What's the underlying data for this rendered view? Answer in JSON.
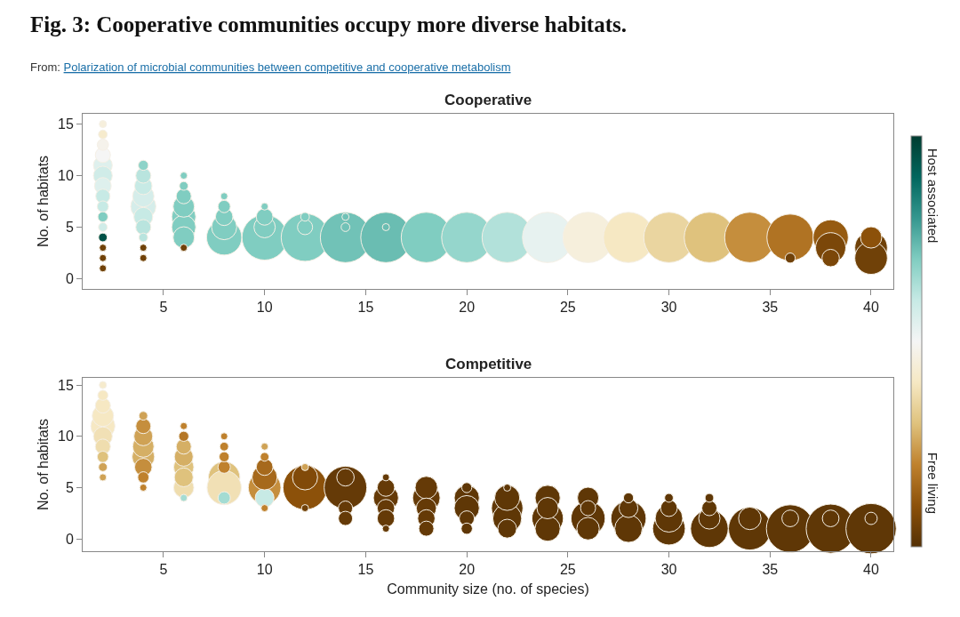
{
  "chart_data": [
    {
      "type": "bubble",
      "title": "Cooperative",
      "ylabel": "No. of habitats",
      "annotations": [
        "Fig. 3: Cooperative communities occupy more diverse habitats.",
        "From:",
        "Polarization of microbial communities between competitive and cooperative metabolism"
      ],
      "x": [
        2,
        2,
        2,
        2,
        2,
        2,
        2,
        2,
        2,
        2,
        2,
        2,
        2,
        2,
        2,
        4,
        4,
        4,
        4,
        4,
        4,
        4,
        4,
        4,
        4,
        6,
        6,
        6,
        6,
        6,
        6,
        6,
        6,
        8,
        8,
        8,
        8,
        8,
        10,
        10,
        10,
        10,
        12,
        12,
        12,
        14,
        14,
        14,
        16,
        16,
        18,
        20,
        22,
        24,
        26,
        28,
        30,
        32,
        34,
        36,
        36,
        38,
        38,
        38,
        40,
        40,
        40
      ],
      "values": [
        11,
        10,
        9,
        12,
        8,
        13,
        7,
        6,
        14,
        5,
        4,
        3,
        2,
        1,
        15,
        7,
        8,
        6,
        9,
        10,
        5,
        11,
        4,
        3,
        2,
        6,
        5,
        7,
        4,
        8,
        9,
        3,
        10,
        4,
        5,
        6,
        7,
        8,
        4,
        5,
        6,
        7,
        4,
        5,
        6,
        4,
        5,
        6,
        4,
        5,
        4,
        4,
        4,
        4,
        4,
        4,
        4,
        4,
        4,
        4,
        2,
        4,
        3,
        2,
        3,
        2,
        4
      ],
      "sizes": [
        0.14,
        0.14,
        0.11,
        0.09,
        0.08,
        0.05,
        0.05,
        0.04,
        0.03,
        0.03,
        0.03,
        0.02,
        0.02,
        0.02,
        0.02,
        0.25,
        0.18,
        0.14,
        0.12,
        0.09,
        0.09,
        0.04,
        0.03,
        0.02,
        0.02,
        0.23,
        0.23,
        0.18,
        0.18,
        0.09,
        0.03,
        0.02,
        0.02,
        0.49,
        0.25,
        0.12,
        0.06,
        0.02,
        0.81,
        0.18,
        0.11,
        0.02,
        0.9,
        0.09,
        0.03,
        1,
        0.03,
        0.02,
        1,
        0.02,
        1,
        1,
        1,
        1,
        1,
        1,
        1,
        1,
        1,
        0.86,
        0.04,
        0.49,
        0.36,
        0.12,
        0.42,
        0.42,
        0.18
      ],
      "cvalues": [
        0.55,
        0.58,
        0.55,
        0.5,
        0.6,
        0.48,
        0.6,
        0.7,
        0.42,
        0.58,
        0.95,
        0.05,
        0.05,
        0.05,
        0.45,
        0.57,
        0.57,
        0.6,
        0.6,
        0.62,
        0.62,
        0.68,
        0.62,
        0.05,
        0.05,
        0.7,
        0.7,
        0.7,
        0.7,
        0.7,
        0.7,
        0.05,
        0.7,
        0.7,
        0.7,
        0.7,
        0.7,
        0.7,
        0.7,
        0.7,
        0.7,
        0.7,
        0.7,
        0.7,
        0.7,
        0.72,
        0.72,
        0.72,
        0.73,
        0.73,
        0.7,
        0.67,
        0.63,
        0.53,
        0.45,
        0.4,
        0.35,
        0.3,
        0.22,
        0.17,
        0.05,
        0.12,
        0.07,
        0.07,
        0.05,
        0.05,
        0.1
      ],
      "xlim": [
        1,
        41.1
      ],
      "xticks": [
        5,
        10,
        15,
        20,
        25,
        30,
        35,
        40
      ],
      "ylim": [
        -1,
        16
      ],
      "yticks": [
        0,
        5,
        10,
        15
      ],
      "clim": [
        0,
        1
      ],
      "cticks": [
        {
          "value": 0.85,
          "label": "Host associated"
        },
        {
          "value": 0.15,
          "label": "Free living"
        }
      ]
    },
    {
      "type": "bubble",
      "title": "Competitive",
      "ylabel": "No. of habitats",
      "xlabel": "Community size (no. of species)",
      "x": [
        2,
        2,
        2,
        2,
        2,
        2,
        2,
        2,
        2,
        2,
        4,
        4,
        4,
        4,
        4,
        4,
        4,
        4,
        6,
        6,
        6,
        6,
        6,
        6,
        6,
        6,
        8,
        8,
        8,
        8,
        8,
        8,
        8,
        10,
        10,
        10,
        10,
        10,
        10,
        10,
        12,
        12,
        12,
        12,
        14,
        14,
        14,
        14,
        16,
        16,
        16,
        16,
        16,
        16,
        18,
        18,
        18,
        18,
        18,
        20,
        20,
        20,
        20,
        20,
        22,
        22,
        22,
        22,
        22,
        24,
        24,
        24,
        24,
        26,
        26,
        26,
        26,
        28,
        28,
        28,
        28,
        30,
        30,
        30,
        30,
        32,
        32,
        32,
        32,
        34,
        34,
        36,
        36,
        38,
        38,
        40,
        40
      ],
      "values": [
        11,
        12,
        10,
        13,
        9,
        8,
        14,
        7,
        6,
        15,
        8,
        9,
        10,
        7,
        11,
        6,
        12,
        5,
        7,
        5,
        8,
        6,
        9,
        10,
        4,
        11,
        6,
        5,
        4,
        7,
        8,
        9,
        10,
        5,
        4,
        6,
        7,
        8,
        3,
        9,
        5,
        6,
        3,
        7,
        5,
        6,
        3,
        2,
        4,
        5,
        3,
        2,
        1,
        6,
        4,
        5,
        3,
        2,
        1,
        4,
        3,
        2,
        1,
        5,
        3,
        2,
        4,
        1,
        5,
        2,
        4,
        1,
        3,
        2,
        1,
        4,
        3,
        2,
        1,
        3,
        4,
        1,
        2,
        3,
        4,
        1,
        2,
        3,
        4,
        1,
        2,
        1,
        2,
        1,
        2,
        1,
        2
      ],
      "sizes": [
        0.23,
        0.18,
        0.14,
        0.09,
        0.09,
        0.05,
        0.04,
        0.03,
        0.02,
        0.02,
        0.2,
        0.18,
        0.14,
        0.12,
        0.09,
        0.05,
        0.03,
        0.02,
        0.16,
        0.16,
        0.14,
        0.14,
        0.09,
        0.04,
        0.02,
        0.02,
        0.39,
        0.46,
        0.06,
        0.06,
        0.04,
        0.03,
        0.02,
        0.42,
        0.14,
        0.25,
        0.11,
        0.03,
        0.02,
        0.02,
        0.77,
        0.25,
        0.02,
        0.02,
        0.72,
        0.12,
        0.08,
        0.08,
        0.25,
        0.12,
        0.12,
        0.12,
        0.02,
        0.02,
        0.3,
        0.2,
        0.16,
        0.12,
        0.09,
        0.25,
        0.25,
        0.09,
        0.05,
        0.04,
        0.39,
        0.33,
        0.25,
        0.14,
        0.02,
        0.39,
        0.25,
        0.25,
        0.18,
        0.46,
        0.2,
        0.18,
        0.09,
        0.49,
        0.3,
        0.14,
        0.04,
        0.42,
        0.3,
        0.11,
        0.03,
        0.56,
        0.18,
        0.09,
        0.03,
        0.72,
        0.2,
        0.9,
        0.11,
        0.95,
        0.11,
        1,
        0.06
      ],
      "colors": [
        "#f6e8c3",
        "#f6e8c3",
        "#f1e0b5",
        "#f6e8c3",
        "#efddae",
        "#dfc27d",
        "#f6e8c3",
        "#cfa255",
        "#cfa255",
        "#f6ebcd",
        "#d5af65",
        "#d5af65",
        "#cfa255",
        "#c58e3d",
        "#c58e3d",
        "#bf812d",
        "#cfa255",
        "#bf812d",
        "#dfc27d",
        "#efddae",
        "#d5af65",
        "#dfc27d",
        "#d5af65",
        "#b57726",
        "#a4dcd3",
        "#bf812d",
        "#dfc27d",
        "#f1e0b5",
        "#a4dcd3",
        "#bf812d",
        "#bf812d",
        "#bf812d",
        "#bf812d",
        "#c58e3d",
        "#c7eae5",
        "#a6691c",
        "#a6691c",
        "#bf812d",
        "#bf812d",
        "#cfa255",
        "#8c510a",
        "#814a09",
        "#704007",
        "#cfa255",
        "#653a07",
        "#653a07",
        "#653a07",
        "#653a07",
        "#653a07",
        "#653a07",
        "#653a07",
        "#653a07",
        "#653a07",
        "#653a07",
        "#653a07",
        "#653a07",
        "#653a07",
        "#653a07",
        "#653a07",
        "#5f3706",
        "#5f3706",
        "#5f3706",
        "#5f3706",
        "#5f3706",
        "#5f3706",
        "#5f3706",
        "#5f3706",
        "#5f3706",
        "#5f3706",
        "#5f3706",
        "#5f3706",
        "#5f3706",
        "#5f3706",
        "#5f3706",
        "#5f3706",
        "#5f3706",
        "#5f3706",
        "#5f3706",
        "#5f3706",
        "#5f3706",
        "#5f3706",
        "#5f3706",
        "#5f3706",
        "#5f3706",
        "#5f3706",
        "#5f3706",
        "#5f3706",
        "#5f3706",
        "#5f3706",
        "#5f3706",
        "#5f3706",
        "#5f3706",
        "#5f3706",
        "#5f3706",
        "#5f3706",
        "#5f3706",
        "#5f3706"
      ],
      "xlim": [
        1,
        41.1
      ],
      "xticks": [
        5,
        10,
        15,
        20,
        25,
        30,
        35,
        40
      ],
      "ylim": [
        -1.2,
        15.7
      ],
      "yticks": [
        0,
        5,
        10,
        15
      ]
    }
  ]
}
